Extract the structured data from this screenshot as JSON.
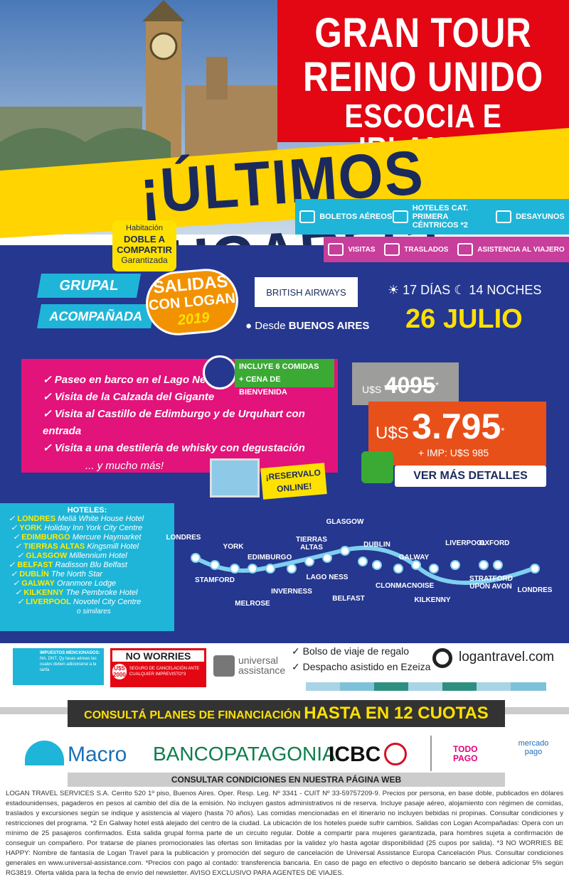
{
  "header": {
    "title_lines": [
      "GRAN TOUR",
      "REINO UNIDO",
      "ESCOCIA E IRLANDA"
    ],
    "banner": "¡ÚLTIMOS LUGARES!"
  },
  "includes": {
    "row1": [
      "BOLETOS AÉREOS",
      "HOTELES CAT. PRIMERA CÉNTRICOS *2",
      "DESAYUNOS"
    ],
    "row2": [
      "VISITAS",
      "TRASLADOS",
      "ASISTENCIA AL VIAJERO"
    ]
  },
  "badge": {
    "lines": [
      "Habitación",
      "DOBLE A",
      "COMPARTIR",
      "Garantizada"
    ]
  },
  "tour": {
    "group_lines": [
      "GRUPAL",
      "ACOMPAÑADA"
    ],
    "logan_badge": [
      "SALIDAS",
      "CON LOGAN",
      "2019"
    ],
    "airline": "BRITISH AIRWAYS",
    "origin_prefix": "Desde",
    "origin": "BUENOS AIRES",
    "days": "17 DÍAS",
    "nights": "14 NOCHES",
    "date": "26 JULIO"
  },
  "highlights": {
    "items": [
      "Paseo en barco en el Lago Ness",
      "Visita de la Calzada del Gigante",
      "Visita al Castillo de Edimburgo y de Urquhart con entrada",
      "Visita a una destilería de whisky con degustación"
    ],
    "more": "... y mucho más!",
    "meals": [
      "INCLUYE 6 COMIDAS",
      "+ CENA DE BIENVENIDA"
    ]
  },
  "price": {
    "old_currency": "U$S",
    "old_amount": "4095",
    "old_mark": "*",
    "currency": "U$S",
    "amount": "3.795",
    "mark": "*",
    "taxes": "+ IMP: U$S 985",
    "button": "VER MÁS DETALLES"
  },
  "reserve": [
    "¡RESERVALO",
    "ONLINE!"
  ],
  "hotels": {
    "title": "HOTELES:",
    "items": [
      {
        "city": "LONDRES",
        "hotel": "Meliá White House Hotel"
      },
      {
        "city": "YORK",
        "hotel": "Holiday Inn York City Centre"
      },
      {
        "city": "EDIMBURGO",
        "hotel": "Mercure Haymarket"
      },
      {
        "city": "TIERRAS ALTAS",
        "hotel": "Kingsmill Hotel"
      },
      {
        "city": "GLASGOW",
        "hotel": "Millennium Hotel"
      },
      {
        "city": "BELFAST",
        "hotel": "Radisson Blu Belfast"
      },
      {
        "city": "DUBLÍN",
        "hotel": "The North Star"
      },
      {
        "city": "GALWAY",
        "hotel": "Oranmore Lodge"
      },
      {
        "city": "KILKENNY",
        "hotel": "The Pembroke Hotel"
      },
      {
        "city": "LIVERPOOL",
        "hotel": "Novotel City Centre"
      }
    ],
    "note": "o similares"
  },
  "route": [
    "LONDRES",
    "STAMFORD",
    "YORK",
    "EDIMBURGO",
    "MELROSE",
    "INVERNESS",
    "LAGO NESS",
    "TIERRAS ALTAS",
    "GLASGOW",
    "BELFAST",
    "DUBLIN",
    "CLONMACNOISE",
    "GALWAY",
    "KILKENNY",
    "LIVERPOOL",
    "STRATFORD UPON AVON",
    "OXFORD",
    "LONDRES"
  ],
  "footer": {
    "taxes_title": "IMPUESTOS MENCIONADOS:",
    "taxes_text": "NA, DNT, Qy tasas aéreas las cuales deben adicionarse a la tarifa",
    "no_worries": "NO WORRIES",
    "no_worries_amount": "U$S 2000",
    "no_worries_text": "SEGURO DE CANCELACIÓN ANTE CUALQUIER IMPREVISTO*3",
    "universal": [
      "universal",
      "assistance"
    ],
    "perks": [
      "Bolso de viaje de regalo",
      "Despacho asistido en Ezeiza"
    ],
    "website": "logantravel.com",
    "financing_prefix": "CONSULTÁ PLANES DE FINANCIACIÓN",
    "financing_main": "HASTA EN 12 CUOTAS",
    "banks": [
      "Macro",
      "BANCOPATAGONIA",
      "ICBC",
      "TODO PAGO",
      "mercado pago"
    ],
    "conditions": "CONSULTAR CONDICIONES EN NUESTRA PÁGINA WEB",
    "legal": "LOGAN TRAVEL SERVICES S.A. Cerrito 520 1º piso, Buenos Aires. Oper. Resp. Leg. Nº 3341 - CUIT Nº 33-59757209-9. Precios por persona, en base doble, publicados en dólares estadounidenses, pagaderos en pesos al cambio del día de la emisión. No incluyen gastos administrativos ni de reserva. Incluye pasaje aéreo, alojamiento con régimen de comidas, traslados y excursiones según se indique y asistencia al viajero (hasta 70 años). Las comidas mencionadas en el itinerario no incluyen bebidas ni propinas. Consultar condiciones y restricciones del programa. *2 En Galway hotel está alejado del centro de la ciudad. La ubicación de los hoteles puede sufrir cambios. Salidas con Logan Acompañadas: Opera con un mínimo de 25 pasajeros confirmados. Esta salida grupal forma parte de un circuito regular. Doble a compartir para mujeres garantizada, para hombres sujeta a confirmación de conseguir un compañero. Por tratarse de planes promocionales las ofertas son limitadas por la validez y/o hasta agotar disponibilidad (25 cupos por salida). *3 NO WORRIES BE HAPPY: Nombre de fantasía de Logan Travel para la publicación y promoción del seguro de cancelación de Universal Assistance Europa Cancelación Plus. Consultar condiciones generales en www.universal-assistance.com. *Precios con pago al contado: transferencia bancaria. En caso de pago en efectivo o depósito bancario se deberá adicionar 5% según RG3819. Oferta válida para la fecha de envío del newsletter. AVISO EXCLUSIVO PARA AGENTES DE VIAJES."
  }
}
